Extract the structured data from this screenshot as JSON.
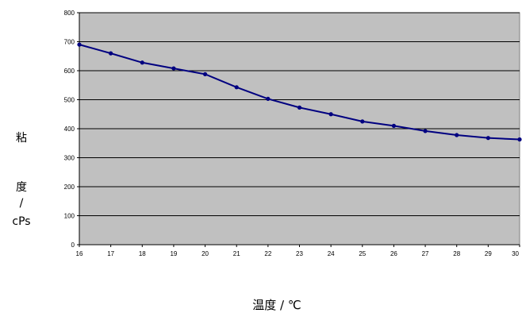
{
  "chart_data": {
    "type": "line",
    "x": [
      16,
      17,
      18,
      19,
      20,
      21,
      22,
      23,
      24,
      25,
      26,
      27,
      28,
      29,
      30
    ],
    "series": [
      {
        "values": [
          690,
          660,
          628,
          608,
          588,
          543,
          503,
          473,
          450,
          425,
          410,
          392,
          378,
          368,
          363
        ]
      }
    ],
    "xlim": [
      16,
      30
    ],
    "ylim": [
      0,
      800
    ],
    "x_ticks": [
      "16",
      "17",
      "18",
      "19",
      "20",
      "21",
      "22",
      "23",
      "24",
      "25",
      "26",
      "27",
      "28",
      "29",
      "30"
    ],
    "y_ticks": [
      "0",
      "100",
      "200",
      "300",
      "400",
      "500",
      "600",
      "700",
      "800"
    ],
    "xlabel": "温度 / ℃",
    "ylabel_lines": [
      "粘",
      "度",
      "/",
      "cPs"
    ],
    "grid": true,
    "colors": {
      "plot_background": "#c0c0c0",
      "gridline": "#000000",
      "series_line": "#000080",
      "marker": "#000080"
    }
  }
}
